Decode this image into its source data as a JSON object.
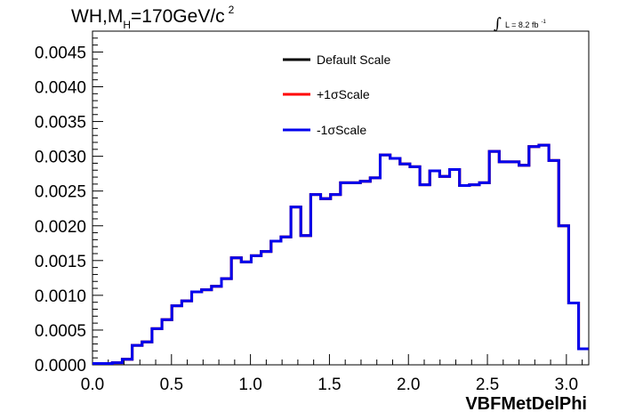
{
  "chart_data": {
    "type": "line",
    "step": true,
    "title_main": "WH,M",
    "title_sub": "H",
    "title_tail": "=170GeV/c",
    "title_sup": "2",
    "lumi_integral": "∫",
    "lumi_text": "L = 8.2 fb",
    "lumi_sup": "-1",
    "xlabel": "VBFMetDelPhi",
    "ylabel": "",
    "xlim": [
      0.0,
      3.1416
    ],
    "ylim": [
      0.0,
      0.0048
    ],
    "x_ticks": [
      "0.0",
      "0.5",
      "1.0",
      "1.5",
      "2.0",
      "2.5",
      "3.0"
    ],
    "y_ticks": [
      "0.0000",
      "0.0005",
      "0.0010",
      "0.0015",
      "0.0020",
      "0.0025",
      "0.0030",
      "0.0035",
      "0.0040",
      "0.0045"
    ],
    "grid": false,
    "legend_position": "top-center",
    "bin_edges_start": 0.0,
    "bin_width": 0.0628,
    "series": [
      {
        "name": "Default Scale",
        "color": "#000000",
        "values": [
          2e-05,
          2e-05,
          3e-05,
          8e-05,
          0.00028,
          0.00033,
          0.00052,
          0.00065,
          0.00085,
          0.00092,
          0.00105,
          0.00108,
          0.00113,
          0.00124,
          0.00154,
          0.00148,
          0.00157,
          0.00163,
          0.00178,
          0.00184,
          0.00227,
          0.00186,
          0.00245,
          0.00239,
          0.00245,
          0.00262,
          0.00262,
          0.00264,
          0.00269,
          0.00302,
          0.00297,
          0.00289,
          0.00285,
          0.00259,
          0.00279,
          0.00271,
          0.00281,
          0.00258,
          0.00259,
          0.00262,
          0.00307,
          0.00292,
          0.00292,
          0.00287,
          0.00314,
          0.00316,
          0.00294,
          0.002,
          0.00089,
          0.00023
        ]
      },
      {
        "name": "+1σScale",
        "color": "#ff0000",
        "values": [
          2e-05,
          2e-05,
          3e-05,
          8e-05,
          0.00028,
          0.00033,
          0.00052,
          0.00065,
          0.00085,
          0.00092,
          0.00105,
          0.00108,
          0.00113,
          0.00124,
          0.00154,
          0.00148,
          0.00157,
          0.00163,
          0.00178,
          0.00184,
          0.00227,
          0.00186,
          0.00245,
          0.00239,
          0.00245,
          0.00262,
          0.00262,
          0.00264,
          0.00269,
          0.00302,
          0.00297,
          0.00289,
          0.00285,
          0.00259,
          0.00279,
          0.00271,
          0.00281,
          0.00258,
          0.00259,
          0.00262,
          0.00307,
          0.00292,
          0.00292,
          0.00287,
          0.00314,
          0.00316,
          0.00294,
          0.002,
          0.00089,
          0.00023
        ]
      },
      {
        "name": "-1σScale",
        "color": "#0000ee",
        "values": [
          2e-05,
          2e-05,
          3e-05,
          8e-05,
          0.00028,
          0.00033,
          0.00052,
          0.00065,
          0.00085,
          0.00092,
          0.00105,
          0.00108,
          0.00113,
          0.00124,
          0.00154,
          0.00148,
          0.00157,
          0.00163,
          0.00178,
          0.00184,
          0.00227,
          0.00186,
          0.00245,
          0.00239,
          0.00245,
          0.00262,
          0.00262,
          0.00264,
          0.00269,
          0.00302,
          0.00297,
          0.00289,
          0.00285,
          0.00259,
          0.00279,
          0.00271,
          0.00281,
          0.00258,
          0.00259,
          0.00262,
          0.00307,
          0.00292,
          0.00292,
          0.00287,
          0.00314,
          0.00316,
          0.00294,
          0.002,
          0.00089,
          0.00023
        ]
      }
    ]
  }
}
